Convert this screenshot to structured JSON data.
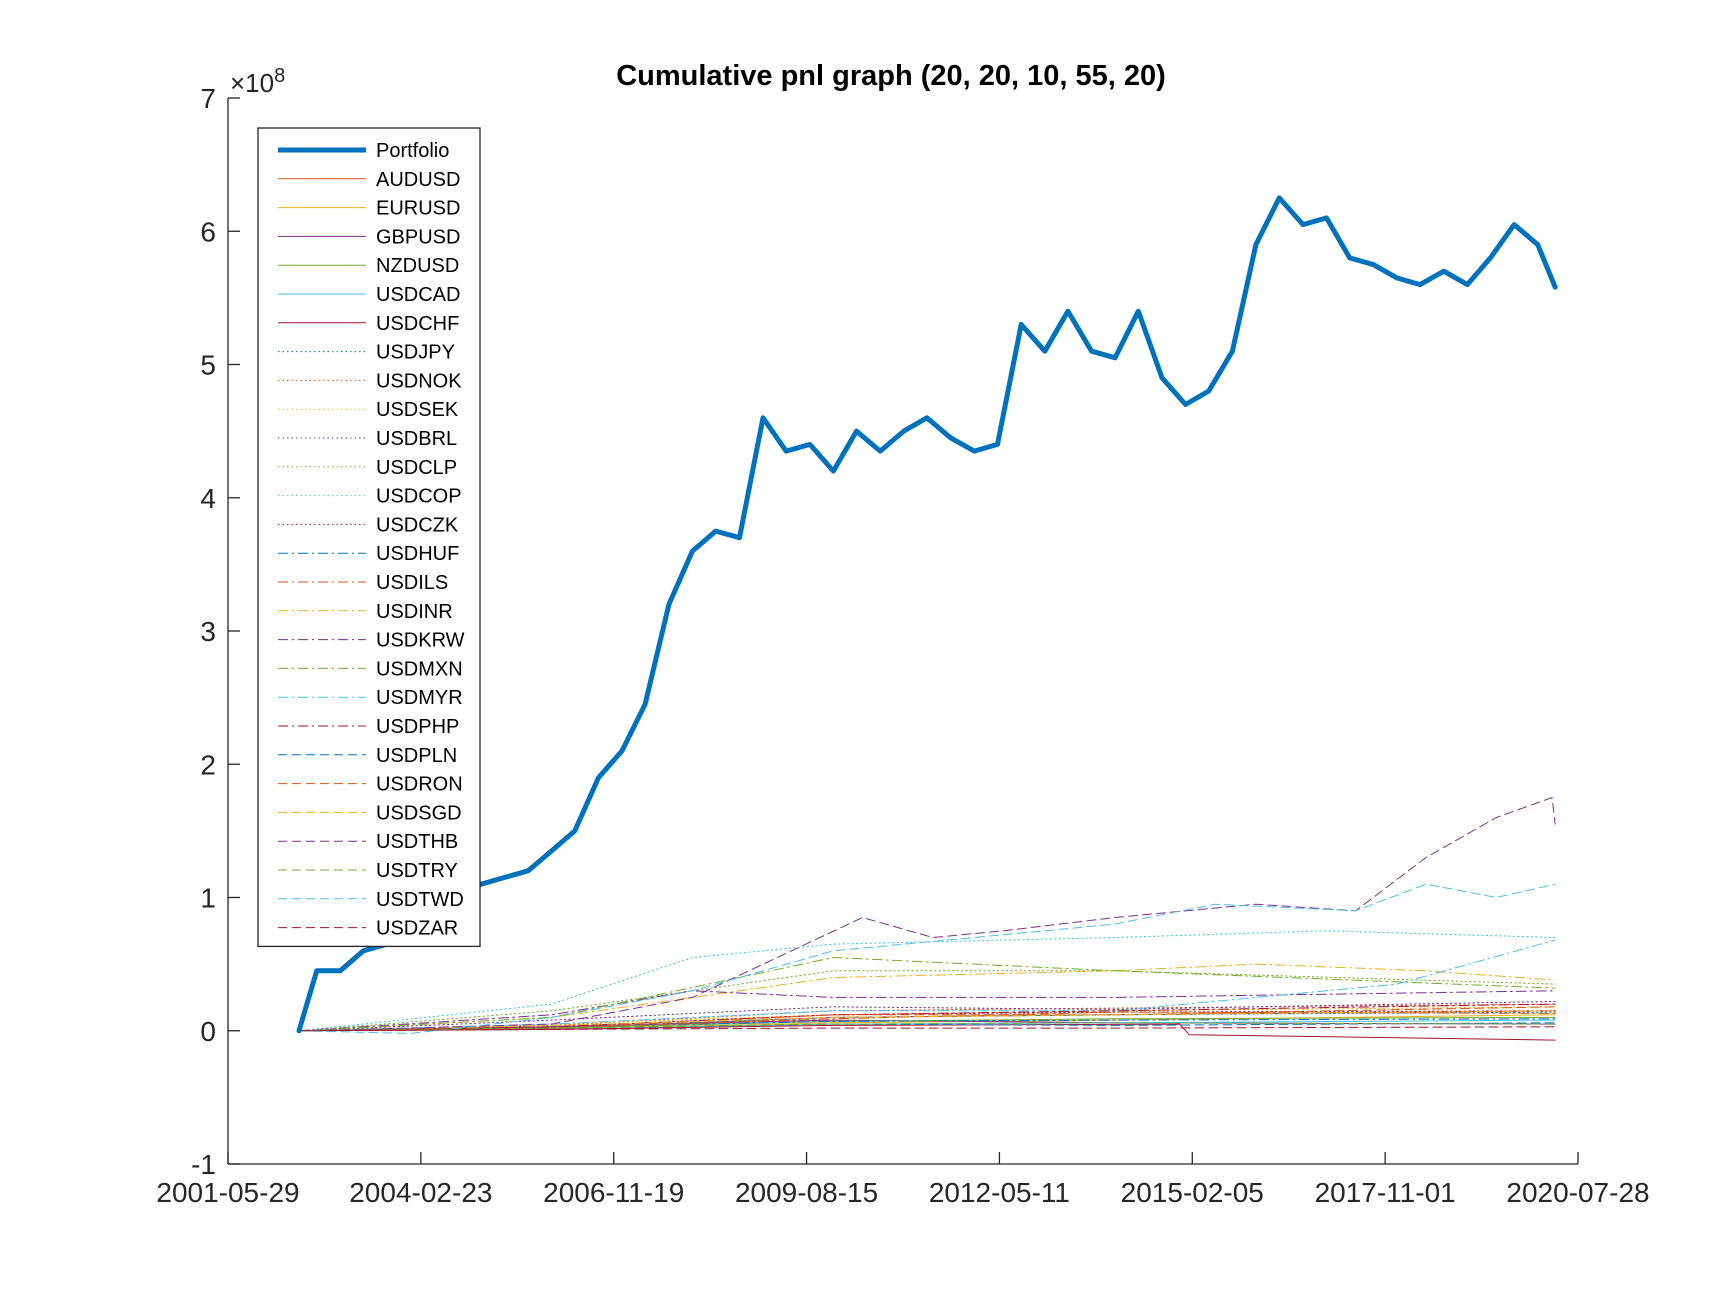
{
  "chart_data": {
    "type": "line",
    "title": "Cumulative pnl graph (20, 20, 10, 55, 20)",
    "xlabel": "",
    "ylabel": "",
    "y_multiplier_label": "×10",
    "y_multiplier_exponent": "8",
    "ylim": [
      -1,
      7
    ],
    "y_unit_scale": 100000000,
    "y_ticks": [
      -1,
      0,
      1,
      2,
      3,
      4,
      5,
      6,
      7
    ],
    "xlim": [
      "2001-05-29",
      "2020-07-28"
    ],
    "x_ticks": [
      "2001-05-29",
      "2004-02-23",
      "2006-11-19",
      "2009-08-15",
      "2012-05-11",
      "2015-02-05",
      "2017-11-01",
      "2020-07-28"
    ],
    "grid": false,
    "legend_position": "top-left",
    "series": [
      {
        "name": "Portfolio",
        "color": "#0072BD",
        "dash": "solid",
        "width": 5,
        "x": [
          "2002-06-01",
          "2002-09-01",
          "2003-01-01",
          "2003-05-01",
          "2003-09-01",
          "2004-01-01",
          "2004-05-01",
          "2004-09-01",
          "2005-01-01",
          "2005-05-01",
          "2005-09-01",
          "2006-01-01",
          "2006-05-01",
          "2006-09-01",
          "2007-01-01",
          "2007-05-01",
          "2007-09-01",
          "2008-01-01",
          "2008-05-01",
          "2008-09-01",
          "2009-01-01",
          "2009-05-01",
          "2009-09-01",
          "2010-01-01",
          "2010-05-01",
          "2010-09-01",
          "2011-01-01",
          "2011-05-01",
          "2011-09-01",
          "2012-01-01",
          "2012-05-01",
          "2012-09-01",
          "2013-01-01",
          "2013-05-01",
          "2013-09-01",
          "2014-01-01",
          "2014-05-01",
          "2014-09-01",
          "2015-01-01",
          "2015-05-01",
          "2015-09-01",
          "2016-01-01",
          "2016-05-01",
          "2016-09-01",
          "2017-01-01",
          "2017-05-01",
          "2017-09-01",
          "2018-01-01",
          "2018-05-01",
          "2018-09-01",
          "2019-01-01",
          "2019-05-01",
          "2019-09-01",
          "2020-01-01",
          "2020-04-01"
        ],
        "y": [
          0.0,
          0.45,
          0.45,
          0.6,
          0.65,
          0.85,
          1.15,
          1.05,
          1.1,
          1.15,
          1.2,
          1.35,
          1.5,
          1.9,
          2.1,
          2.45,
          3.2,
          3.6,
          3.75,
          3.7,
          4.6,
          4.35,
          4.4,
          4.2,
          4.5,
          4.35,
          4.5,
          4.6,
          4.45,
          4.35,
          4.4,
          5.3,
          5.1,
          5.4,
          5.1,
          5.05,
          5.4,
          4.9,
          4.7,
          4.8,
          5.1,
          5.9,
          6.25,
          6.05,
          6.1,
          5.8,
          5.75,
          5.65,
          5.6,
          5.7,
          5.6,
          5.8,
          6.05,
          5.9,
          5.58
        ]
      },
      {
        "name": "AUDUSD",
        "color": "#D95319",
        "dash": "solid",
        "width": 1,
        "x": [
          "2002-06-01",
          "2006-01-01",
          "2010-01-01",
          "2014-01-01",
          "2020-04-01"
        ],
        "y": [
          0.0,
          0.02,
          0.1,
          0.12,
          0.15
        ]
      },
      {
        "name": "EURUSD",
        "color": "#EDB120",
        "dash": "solid",
        "width": 1,
        "x": [
          "2002-06-01",
          "2006-01-01",
          "2010-01-01",
          "2014-01-01",
          "2020-04-01"
        ],
        "y": [
          0.0,
          0.01,
          0.06,
          0.08,
          0.12
        ]
      },
      {
        "name": "GBPUSD",
        "color": "#7E2F8E",
        "dash": "solid",
        "width": 1,
        "x": [
          "2002-06-01",
          "2006-01-01",
          "2010-01-01",
          "2014-01-01",
          "2020-04-01"
        ],
        "y": [
          0.0,
          0.03,
          0.08,
          0.06,
          0.05
        ]
      },
      {
        "name": "NZDUSD",
        "color": "#77AC30",
        "dash": "solid",
        "width": 1,
        "x": [
          "2002-06-01",
          "2006-01-01",
          "2010-01-01",
          "2014-01-01",
          "2020-04-01"
        ],
        "y": [
          0.0,
          0.02,
          0.07,
          0.09,
          0.1
        ]
      },
      {
        "name": "USDCAD",
        "color": "#4DBEEE",
        "dash": "solid",
        "width": 1,
        "x": [
          "2002-06-01",
          "2006-01-01",
          "2010-01-01",
          "2014-01-01",
          "2020-04-01"
        ],
        "y": [
          0.0,
          0.01,
          0.05,
          0.06,
          0.08
        ]
      },
      {
        "name": "USDCHF",
        "color": "#A2142F",
        "dash": "solid",
        "width": 1,
        "x": [
          "2002-06-01",
          "2006-01-01",
          "2010-01-01",
          "2014-12-01",
          "2015-01-20",
          "2020-04-01"
        ],
        "y": [
          0.0,
          0.01,
          0.04,
          0.05,
          -0.03,
          -0.07
        ]
      },
      {
        "name": "USDJPY",
        "color": "#0072BD",
        "dash": "dotted",
        "width": 1,
        "x": [
          "2002-06-01",
          "2006-01-01",
          "2010-01-01",
          "2014-01-01",
          "2020-04-01"
        ],
        "y": [
          0.0,
          0.02,
          0.1,
          0.12,
          0.14
        ]
      },
      {
        "name": "USDNOK",
        "color": "#D95319",
        "dash": "dotted",
        "width": 1,
        "x": [
          "2002-06-01",
          "2006-01-01",
          "2010-01-01",
          "2014-01-01",
          "2020-04-01"
        ],
        "y": [
          0.0,
          0.04,
          0.15,
          0.17,
          0.2
        ]
      },
      {
        "name": "USDSEK",
        "color": "#EDB120",
        "dash": "dotted",
        "width": 1,
        "x": [
          "2002-06-01",
          "2006-01-01",
          "2010-01-01",
          "2014-01-01",
          "2020-04-01"
        ],
        "y": [
          0.0,
          0.05,
          0.12,
          0.15,
          0.18
        ]
      },
      {
        "name": "USDBRL",
        "color": "#7E2F8E",
        "dash": "dotted",
        "width": 1,
        "x": [
          "2002-06-01",
          "2006-01-01",
          "2010-01-01",
          "2014-01-01",
          "2020-04-01"
        ],
        "y": [
          0.0,
          0.08,
          0.18,
          0.16,
          0.22
        ]
      },
      {
        "name": "USDCLP",
        "color": "#77AC30",
        "dash": "dotted",
        "width": 1,
        "x": [
          "2002-06-01",
          "2006-01-01",
          "2010-01-01",
          "2014-01-01",
          "2020-04-01"
        ],
        "y": [
          0.0,
          0.15,
          0.45,
          0.45,
          0.35
        ]
      },
      {
        "name": "USDCOP",
        "color": "#4DBEEE",
        "dash": "dotted",
        "width": 1,
        "x": [
          "2002-06-01",
          "2006-01-01",
          "2008-01-01",
          "2010-01-01",
          "2014-01-01",
          "2017-01-01",
          "2020-04-01"
        ],
        "y": [
          0.0,
          0.2,
          0.55,
          0.65,
          0.7,
          0.75,
          0.7
        ]
      },
      {
        "name": "USDCZK",
        "color": "#A2142F",
        "dash": "dotted",
        "width": 1,
        "x": [
          "2002-06-01",
          "2006-01-01",
          "2010-01-01",
          "2014-01-01",
          "2020-04-01"
        ],
        "y": [
          0.0,
          0.03,
          0.12,
          0.14,
          0.15
        ]
      },
      {
        "name": "USDHUF",
        "color": "#0072BD",
        "dash": "dashdot",
        "width": 1,
        "x": [
          "2002-06-01",
          "2006-01-01",
          "2010-01-01",
          "2014-01-01",
          "2020-04-01"
        ],
        "y": [
          0.0,
          0.03,
          0.07,
          0.08,
          0.09
        ]
      },
      {
        "name": "USDILS",
        "color": "#D95319",
        "dash": "dashdot",
        "width": 1,
        "x": [
          "2002-06-01",
          "2006-01-01",
          "2010-01-01",
          "2014-01-01",
          "2020-04-01"
        ],
        "y": [
          0.0,
          0.02,
          0.09,
          0.14,
          0.13
        ]
      },
      {
        "name": "USDINR",
        "color": "#EDB120",
        "dash": "dashdot",
        "width": 1,
        "x": [
          "2002-06-01",
          "2006-01-01",
          "2008-01-01",
          "2010-01-01",
          "2014-01-01",
          "2016-01-01",
          "2018-06-01",
          "2020-04-01"
        ],
        "y": [
          0.0,
          0.1,
          0.25,
          0.4,
          0.45,
          0.5,
          0.45,
          0.38
        ]
      },
      {
        "name": "USDKRW",
        "color": "#7E2F8E",
        "dash": "dashdot",
        "width": 1,
        "x": [
          "2002-06-01",
          "2006-01-01",
          "2008-01-01",
          "2010-01-01",
          "2014-01-01",
          "2020-04-01"
        ],
        "y": [
          0.0,
          0.12,
          0.3,
          0.25,
          0.25,
          0.3
        ]
      },
      {
        "name": "USDMXN",
        "color": "#77AC30",
        "dash": "dashdot",
        "width": 1,
        "x": [
          "2002-06-01",
          "2006-01-01",
          "2010-01-01",
          "2014-01-01",
          "2020-04-01"
        ],
        "y": [
          0.0,
          0.1,
          0.55,
          0.45,
          0.32
        ]
      },
      {
        "name": "USDMYR",
        "color": "#4DBEEE",
        "dash": "dashdot",
        "width": 1,
        "x": [
          "2002-06-01",
          "2006-01-01",
          "2010-01-01",
          "2014-01-01",
          "2018-01-01",
          "2020-04-01"
        ],
        "y": [
          0.0,
          0.05,
          0.15,
          0.15,
          0.35,
          0.68
        ]
      },
      {
        "name": "USDPHP",
        "color": "#A2142F",
        "dash": "dashdot",
        "width": 1,
        "x": [
          "2002-06-01",
          "2006-01-01",
          "2010-01-01",
          "2014-01-01",
          "2020-04-01"
        ],
        "y": [
          0.0,
          0.03,
          0.12,
          0.15,
          0.2
        ]
      },
      {
        "name": "USDPLN",
        "color": "#0072BD",
        "dash": "dashed",
        "width": 1,
        "x": [
          "2002-06-01",
          "2006-01-01",
          "2010-01-01",
          "2014-01-01",
          "2020-04-01"
        ],
        "y": [
          0.0,
          0.02,
          0.05,
          0.04,
          0.06
        ]
      },
      {
        "name": "USDRON",
        "color": "#D95319",
        "dash": "dashed",
        "width": 1,
        "x": [
          "2002-06-01",
          "2006-01-01",
          "2010-01-01",
          "2014-01-01",
          "2020-04-01"
        ],
        "y": [
          0.0,
          0.02,
          0.12,
          0.12,
          0.18
        ]
      },
      {
        "name": "USDSGD",
        "color": "#EDB120",
        "dash": "dashed",
        "width": 1,
        "x": [
          "2002-06-01",
          "2006-01-01",
          "2010-01-01",
          "2014-01-01",
          "2020-04-01"
        ],
        "y": [
          0.0,
          0.04,
          0.1,
          0.12,
          0.15
        ]
      },
      {
        "name": "USDTHB",
        "color": "#7E2F8E",
        "dash": "dashed",
        "width": 1,
        "x": [
          "2002-06-01",
          "2004-01-01",
          "2006-01-01",
          "2008-01-01",
          "2010-06-01",
          "2011-06-01",
          "2012-06-01",
          "2014-01-01",
          "2016-01-01",
          "2017-06-01",
          "2018-06-01",
          "2019-06-01",
          "2020-03-15",
          "2020-04-01"
        ],
        "y": [
          0.0,
          0.02,
          0.05,
          0.25,
          0.85,
          0.7,
          0.75,
          0.85,
          0.95,
          0.9,
          1.3,
          1.6,
          1.75,
          1.55
        ]
      },
      {
        "name": "USDTRY",
        "color": "#77AC30",
        "dash": "dashed",
        "width": 1,
        "x": [
          "2002-06-01",
          "2006-01-01",
          "2010-01-01",
          "2014-01-01",
          "2020-04-01"
        ],
        "y": [
          0.0,
          0.02,
          0.05,
          0.06,
          0.05
        ]
      },
      {
        "name": "USDTWD",
        "color": "#4DBEEE",
        "dash": "dashed",
        "width": 1,
        "x": [
          "2002-06-01",
          "2004-01-01",
          "2006-01-01",
          "2008-01-01",
          "2010-01-01",
          "2012-01-01",
          "2014-01-01",
          "2015-06-01",
          "2017-06-01",
          "2018-06-01",
          "2019-06-01",
          "2020-04-01"
        ],
        "y": [
          0.0,
          -0.02,
          0.1,
          0.3,
          0.6,
          0.7,
          0.8,
          0.95,
          0.9,
          1.1,
          1.0,
          1.1
        ]
      },
      {
        "name": "USDZAR",
        "color": "#A2142F",
        "dash": "dashed",
        "width": 1,
        "x": [
          "2002-06-01",
          "2006-01-01",
          "2010-01-01",
          "2014-01-01",
          "2020-04-01"
        ],
        "y": [
          0.0,
          0.01,
          0.02,
          0.02,
          0.03
        ]
      }
    ]
  }
}
